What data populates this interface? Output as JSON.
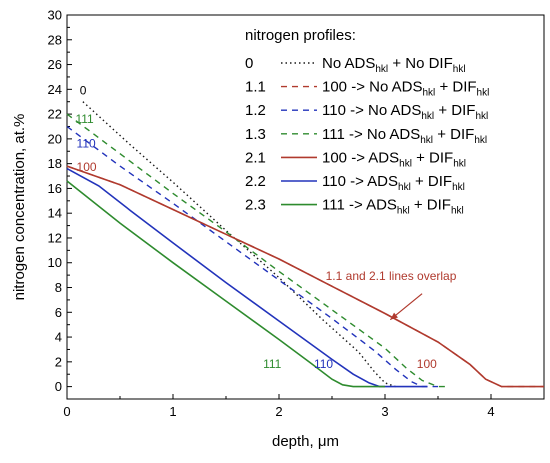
{
  "chart_data": {
    "type": "line",
    "xlabel": "depth, μm",
    "ylabel": "nitrogen concentration, at.%",
    "xlim": [
      0,
      4.5
    ],
    "ylim": [
      -1,
      30
    ],
    "xticks": [
      "0",
      "1",
      "2",
      "3",
      "4"
    ],
    "yticks": [
      "0",
      "2",
      "4",
      "6",
      "8",
      "10",
      "12",
      "14",
      "16",
      "18",
      "20",
      "22",
      "24",
      "26",
      "28",
      "30"
    ],
    "legend_title": "nitrogen profiles:",
    "legend_position": "top-right",
    "series": [
      {
        "id": "0",
        "label_main": "No ADS",
        "sub1": "hkl",
        "label_mid": " + No DIF",
        "sub2": "hkl",
        "color": "#1a1a1a",
        "dash": "1.5,3",
        "x": [
          0.15,
          0.6,
          1.0,
          1.5,
          2.0,
          2.4,
          2.75,
          2.9,
          3.0,
          3.1
        ],
        "y": [
          23.0,
          19.5,
          16.5,
          12.6,
          8.8,
          5.5,
          2.8,
          1.2,
          0.3,
          0.0
        ]
      },
      {
        "id": "1.1",
        "label_main": "100 -> No ADS",
        "sub1": "hkl",
        "label_mid": " + DIF",
        "sub2": "hkl",
        "color": "#b03a2e",
        "dash": "6,5",
        "x": [
          0.0,
          0.5,
          1.0,
          1.5,
          2.0,
          2.5,
          3.0,
          3.5,
          3.8,
          3.95,
          4.1,
          4.5
        ],
        "y": [
          17.8,
          16.3,
          14.3,
          12.3,
          10.3,
          8.1,
          5.9,
          3.6,
          1.8,
          0.6,
          0.0,
          0.0
        ]
      },
      {
        "id": "1.2",
        "label_main": "110 -> No ADS",
        "sub1": "hkl",
        "label_mid": " + DIF",
        "sub2": "hkl",
        "color": "#2233bb",
        "dash": "6,5",
        "x": [
          0.0,
          0.5,
          1.0,
          1.5,
          2.0,
          2.5,
          2.9,
          3.1,
          3.25,
          3.35,
          3.5
        ],
        "y": [
          21.0,
          17.8,
          14.8,
          11.7,
          8.6,
          5.5,
          2.9,
          1.4,
          0.4,
          0.0,
          0.0
        ]
      },
      {
        "id": "1.3",
        "label_main": "111 -> No ADS",
        "sub1": "hkl",
        "label_mid": " + DIF",
        "sub2": "hkl",
        "color": "#2e8b2e",
        "dash": "6,5",
        "x": [
          0.0,
          0.5,
          1.0,
          1.5,
          2.0,
          2.5,
          3.0,
          3.2,
          3.35,
          3.5,
          3.6
        ],
        "y": [
          22.0,
          18.8,
          15.6,
          12.5,
          9.3,
          6.2,
          3.1,
          1.5,
          0.5,
          0.0,
          0.0
        ]
      },
      {
        "id": "2.1",
        "label_main": "100 -> ADS",
        "sub1": "hkl",
        "label_mid": " + DIF",
        "sub2": "hkl",
        "color": "#b03a2e",
        "dash": "",
        "x": [
          0.0,
          0.5,
          1.0,
          1.5,
          2.0,
          2.5,
          3.0,
          3.5,
          3.8,
          3.95,
          4.1,
          4.5
        ],
        "y": [
          17.8,
          16.3,
          14.3,
          12.3,
          10.3,
          8.1,
          5.9,
          3.6,
          1.8,
          0.6,
          0.0,
          0.0
        ]
      },
      {
        "id": "2.2",
        "label_main": "110 -> ADS",
        "sub1": "hkl",
        "label_mid": " + DIF",
        "sub2": "hkl",
        "color": "#2233bb",
        "dash": "",
        "x": [
          0.0,
          0.3,
          0.6,
          1.0,
          1.5,
          2.0,
          2.5,
          2.7,
          2.85,
          2.95,
          3.1,
          3.4
        ],
        "y": [
          17.6,
          16.2,
          14.2,
          11.6,
          8.4,
          5.3,
          2.2,
          1.0,
          0.3,
          0.0,
          0.0,
          0.0
        ]
      },
      {
        "id": "2.3",
        "label_main": "111 -> ADS",
        "sub1": "hkl",
        "label_mid": " + DIF",
        "sub2": "hkl",
        "color": "#2e8b2e",
        "dash": "",
        "x": [
          0.0,
          0.5,
          1.0,
          1.5,
          2.0,
          2.3,
          2.5,
          2.6,
          2.7,
          3.0
        ],
        "y": [
          16.6,
          13.2,
          10.0,
          6.9,
          3.8,
          1.9,
          0.6,
          0.15,
          0.0,
          0.0
        ]
      }
    ],
    "annotations": [
      {
        "text": "0",
        "x": 0.12,
        "y": 23.6,
        "color": "#000000"
      },
      {
        "text": "111",
        "x": 0.08,
        "y": 21.3,
        "color": "#2e8b2e"
      },
      {
        "text": "110",
        "x": 0.09,
        "y": 19.3,
        "color": "#2233bb"
      },
      {
        "text": "100",
        "x": 0.09,
        "y": 17.4,
        "color": "#b03a2e"
      },
      {
        "text": "111",
        "x": 1.85,
        "y": 1.5,
        "color": "#2e8b2e"
      },
      {
        "text": "110",
        "x": 2.33,
        "y": 1.5,
        "color": "#2233bb"
      },
      {
        "text": "100",
        "x": 3.3,
        "y": 1.5,
        "color": "#b03a2e"
      },
      {
        "text": "1.1 and 2.1 lines overlap",
        "x": 2.44,
        "y": 8.6,
        "color": "#b03a2e",
        "size": 14
      }
    ],
    "arrow": {
      "from": [
        3.35,
        7.5
      ],
      "to": [
        3.05,
        5.4
      ],
      "color": "#b03a2e"
    }
  }
}
